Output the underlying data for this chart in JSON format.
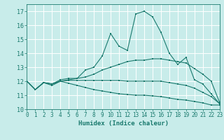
{
  "xlabel": "Humidex (Indice chaleur)",
  "xlim": [
    0,
    23
  ],
  "ylim": [
    10,
    17.5
  ],
  "yticks": [
    10,
    11,
    12,
    13,
    14,
    15,
    16,
    17
  ],
  "xticks": [
    0,
    1,
    2,
    3,
    4,
    5,
    6,
    7,
    8,
    9,
    10,
    11,
    12,
    13,
    14,
    15,
    16,
    17,
    18,
    19,
    20,
    21,
    22,
    23
  ],
  "bg_color": "#c8ecea",
  "grid_color": "#ffffff",
  "line_color": "#1a7a6e",
  "lines": [
    {
      "x": [
        0,
        1,
        2,
        3,
        4,
        5,
        6,
        7,
        8,
        9,
        10,
        11,
        12,
        13,
        14,
        15,
        16,
        17,
        18,
        19,
        20,
        21,
        22,
        23
      ],
      "y": [
        12.0,
        11.4,
        11.9,
        11.7,
        12.0,
        12.1,
        12.2,
        12.8,
        13.0,
        13.8,
        15.4,
        14.5,
        14.2,
        16.8,
        17.0,
        16.6,
        15.5,
        14.0,
        13.2,
        13.7,
        12.1,
        11.8,
        11.1,
        10.4
      ]
    },
    {
      "x": [
        0,
        1,
        2,
        3,
        4,
        5,
        6,
        7,
        8,
        9,
        10,
        11,
        12,
        13,
        14,
        15,
        16,
        17,
        18,
        19,
        20,
        21,
        22,
        23
      ],
      "y": [
        12.0,
        11.4,
        11.9,
        11.8,
        12.1,
        12.2,
        12.2,
        12.3,
        12.5,
        12.8,
        13.0,
        13.2,
        13.4,
        13.5,
        13.5,
        13.6,
        13.6,
        13.5,
        13.4,
        13.3,
        12.9,
        12.5,
        12.0,
        10.5
      ]
    },
    {
      "x": [
        0,
        1,
        2,
        3,
        4,
        5,
        6,
        7,
        8,
        9,
        10,
        11,
        12,
        13,
        14,
        15,
        16,
        17,
        18,
        19,
        20,
        21,
        22,
        23
      ],
      "y": [
        12.0,
        11.4,
        11.9,
        11.8,
        12.0,
        12.05,
        12.05,
        12.05,
        12.05,
        12.05,
        12.05,
        12.05,
        12.0,
        12.0,
        12.0,
        12.0,
        12.0,
        11.9,
        11.8,
        11.7,
        11.5,
        11.2,
        10.9,
        10.4
      ]
    },
    {
      "x": [
        0,
        1,
        2,
        3,
        4,
        5,
        6,
        7,
        8,
        9,
        10,
        11,
        12,
        13,
        14,
        15,
        16,
        17,
        18,
        19,
        20,
        21,
        22,
        23
      ],
      "y": [
        12.0,
        11.4,
        11.9,
        11.8,
        12.0,
        11.85,
        11.7,
        11.55,
        11.4,
        11.3,
        11.2,
        11.1,
        11.05,
        11.0,
        11.0,
        10.95,
        10.9,
        10.8,
        10.7,
        10.65,
        10.55,
        10.45,
        10.3,
        10.3
      ]
    }
  ]
}
